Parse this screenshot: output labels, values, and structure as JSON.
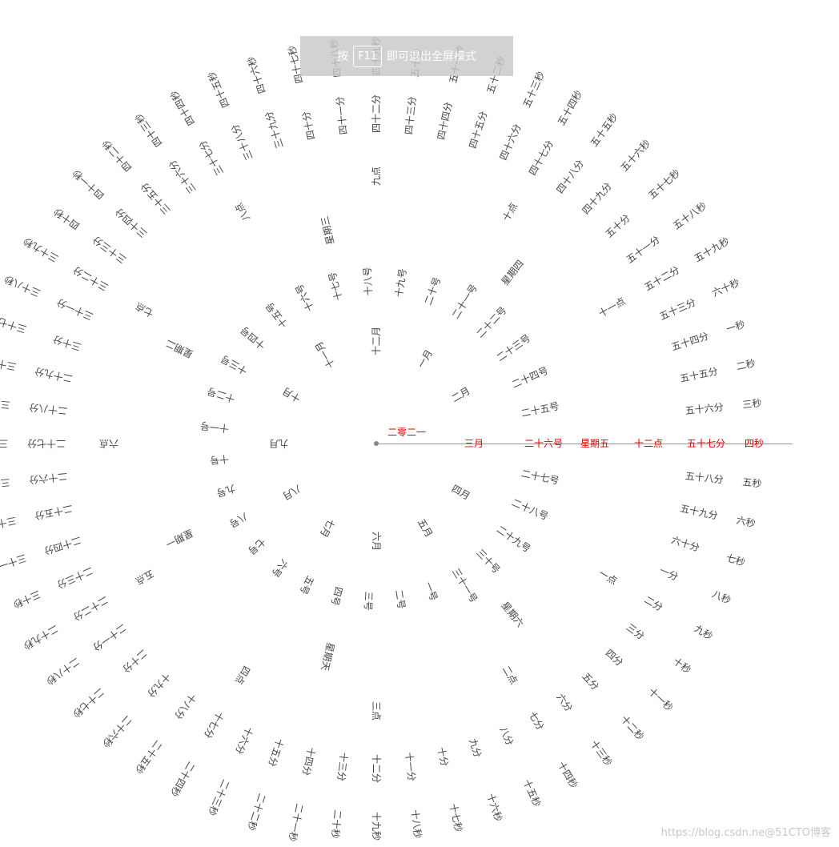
{
  "fullscreen_notice": {
    "before": "按",
    "key": "F11",
    "after": "即可退出全屏模式"
  },
  "watermark": "https://blog.csdn.ne@51CTO博客",
  "colors": {
    "current": "#e00000",
    "normal": "#444444",
    "hand": "#999999"
  },
  "clock": {
    "year_label": "二零二一",
    "rings": [
      {
        "name": "months",
        "labels": [
          "一月",
          "二月",
          "三月",
          "四月",
          "五月",
          "六月",
          "七月",
          "八月",
          "九月",
          "十月",
          "十一月",
          "十二月"
        ],
        "current_index": 2
      },
      {
        "name": "days",
        "labels": [
          "一号",
          "二号",
          "三号",
          "四号",
          "五号",
          "六号",
          "七号",
          "八号",
          "九号",
          "十号",
          "十一号",
          "十二号",
          "十三号",
          "十四号",
          "十五号",
          "十六号",
          "十七号",
          "十八号",
          "十九号",
          "二十号",
          "二十一号",
          "二十二号",
          "二十三号",
          "二十四号",
          "二十五号",
          "二十六号",
          "二十七号",
          "二十八号",
          "二十九号",
          "三十号",
          "三十一号"
        ],
        "current_index": 25
      },
      {
        "name": "weekdays",
        "labels": [
          "星期一",
          "星期二",
          "星期三",
          "星期四",
          "星期五",
          "星期六",
          "星期天"
        ],
        "current_index": 4
      },
      {
        "name": "hours",
        "labels": [
          "一点",
          "二点",
          "三点",
          "四点",
          "五点",
          "六点",
          "七点",
          "八点",
          "九点",
          "十点",
          "十一点",
          "十二点"
        ],
        "current_index": 11
      },
      {
        "name": "minutes",
        "labels": [
          "一分",
          "二分",
          "三分",
          "四分",
          "五分",
          "六分",
          "七分",
          "八分",
          "九分",
          "十分",
          "十一分",
          "十二分",
          "十三分",
          "十四分",
          "十五分",
          "十六分",
          "十七分",
          "十八分",
          "十九分",
          "二十分",
          "二十一分",
          "二十二分",
          "二十三分",
          "二十四分",
          "二十五分",
          "二十六分",
          "二十七分",
          "二十八分",
          "二十九分",
          "三十分",
          "三十一分",
          "三十二分",
          "三十三分",
          "三十四分",
          "三十五分",
          "三十六分",
          "三十七分",
          "三十八分",
          "三十九分",
          "四十分",
          "四十一分",
          "四十二分",
          "四十三分",
          "四十四分",
          "四十五分",
          "四十六分",
          "四十七分",
          "四十八分",
          "四十九分",
          "五十分",
          "五十一分",
          "五十二分",
          "五十三分",
          "五十四分",
          "五十五分",
          "五十六分",
          "五十七分",
          "五十八分",
          "五十九分",
          "六十分"
        ],
        "current_index": 56
      },
      {
        "name": "seconds",
        "labels": [
          "一秒",
          "二秒",
          "三秒",
          "四秒",
          "五秒",
          "六秒",
          "七秒",
          "八秒",
          "九秒",
          "十秒",
          "十一秒",
          "十二秒",
          "十三秒",
          "十四秒",
          "十五秒",
          "十六秒",
          "十七秒",
          "十八秒",
          "十九秒",
          "二十秒",
          "二十一秒",
          "二十二秒",
          "二十三秒",
          "二十四秒",
          "二十五秒",
          "二十六秒",
          "二十七秒",
          "二十八秒",
          "二十九秒",
          "三十秒",
          "三十一秒",
          "三十二秒",
          "三十三秒",
          "三十四秒",
          "三十五秒",
          "三十六秒",
          "三十七秒",
          "三十八秒",
          "三十九秒",
          "四十秒",
          "四十一秒",
          "四十二秒",
          "四十三秒",
          "四十四秒",
          "四十五秒",
          "四十六秒",
          "四十七秒",
          "四十八秒",
          "四十九秒",
          "五十秒",
          "五十一秒",
          "五十二秒",
          "五十三秒",
          "五十四秒",
          "五十五秒",
          "五十六秒",
          "五十七秒",
          "五十八秒",
          "五十九秒",
          "六十秒"
        ],
        "current_index": 3
      }
    ]
  }
}
